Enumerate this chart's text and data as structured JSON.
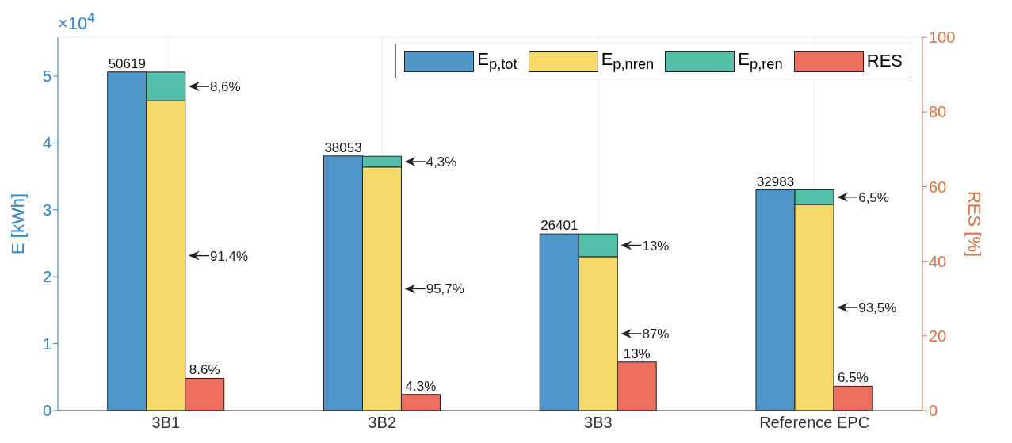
{
  "chart_data": {
    "type": "bar",
    "categories": [
      "3B1",
      "3B2",
      "3B3",
      "Reference EPC"
    ],
    "ylabel": "E [kWh]",
    "y2label": "RES [%]",
    "ylim": [
      0,
      5.58
    ],
    "yticks": [
      0,
      1,
      2,
      3,
      4,
      5
    ],
    "y2lim": [
      0,
      100
    ],
    "y2ticks": [
      0,
      20,
      40,
      60,
      80,
      100
    ],
    "grid": true,
    "legend": "top right",
    "series": [
      {
        "name": "E$_{p,tot}$",
        "color": "#4f97c9",
        "values": [
          5.0619,
          3.8053,
          2.6401,
          3.2983
        ]
      },
      {
        "name": "E$_{p,nren}$",
        "color": "#f5da6b",
        "base": [
          0,
          0,
          0,
          0
        ],
        "values": [
          4.63,
          3.64,
          2.3,
          3.08
        ]
      },
      {
        "name": "E$_{p,ren}$",
        "color": "#52c0a8",
        "base": [
          4.63,
          3.64,
          2.3,
          3.08
        ],
        "values": [
          0.43,
          0.16,
          0.34,
          0.22
        ]
      },
      {
        "name": "RES",
        "color": "#ec6e5f",
        "axis": "y2",
        "values": [
          8.6,
          4.3,
          13,
          6.5
        ],
        "value_labels": [
          "8.6%",
          "4.3%",
          "13%",
          "6.5%"
        ]
      }
    ],
    "annotations": [
      "×10$^{4}$",
      {
        "text": "50619",
        "x": "3B1",
        "y": 5.0619
      },
      {
        "text": "38053",
        "x": "3B2",
        "y": 3.8053
      },
      {
        "text": "26401",
        "x": "3B3",
        "y": 2.6401
      },
      {
        "text": "32983",
        "x": "Reference EPC",
        "y": 3.2983
      },
      "8,6%",
      "91,4%",
      "4,3%",
      "95,7%",
      "13%",
      "87%",
      "6,5%",
      "93,5%"
    ]
  }
}
